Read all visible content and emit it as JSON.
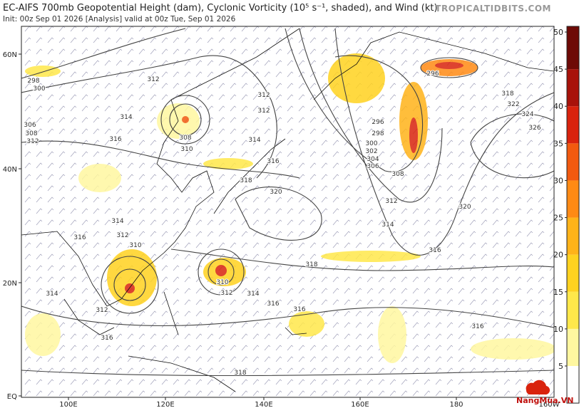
{
  "header": {
    "title": "EC-AIFS 700mb Geopotential Height (dam), Cyclonic Vorticity (10⁵ s⁻¹, shaded), and Wind (kt)",
    "init": "Init: 00z Sep 01 2026   [Analysis]   valid at 00z Tue, Sep 01 2026",
    "source": "TROPICALTIDBITS.COM"
  },
  "map": {
    "lat_labels": [
      "60N",
      "40N",
      "20N",
      "EQ"
    ],
    "lon_labels": [
      "100E",
      "120E",
      "140E",
      "160E",
      "180",
      "160W"
    ],
    "contour_labels": [
      "298",
      "300",
      "306",
      "308",
      "312",
      "312",
      "314",
      "316",
      "308",
      "310",
      "312",
      "312",
      "314",
      "316",
      "318",
      "320",
      "296",
      "298",
      "300",
      "302",
      "304",
      "306",
      "308",
      "312",
      "314",
      "316",
      "318",
      "296",
      "318",
      "322",
      "324",
      "326",
      "320",
      "314",
      "312",
      "310",
      "316",
      "314",
      "312",
      "316",
      "310",
      "312",
      "314",
      "316",
      "316",
      "316",
      "318"
    ]
  },
  "colorbar": {
    "ticks": [
      5,
      10,
      15,
      20,
      25,
      30,
      35,
      40,
      45,
      50
    ],
    "colors": [
      "#ffffff",
      "#fff7a0",
      "#ffe84a",
      "#ffd21f",
      "#ffb319",
      "#ff8a14",
      "#f25a0f",
      "#d9230d",
      "#a8120a",
      "#6e0a06"
    ]
  },
  "watermark": "NangMua.VN"
}
